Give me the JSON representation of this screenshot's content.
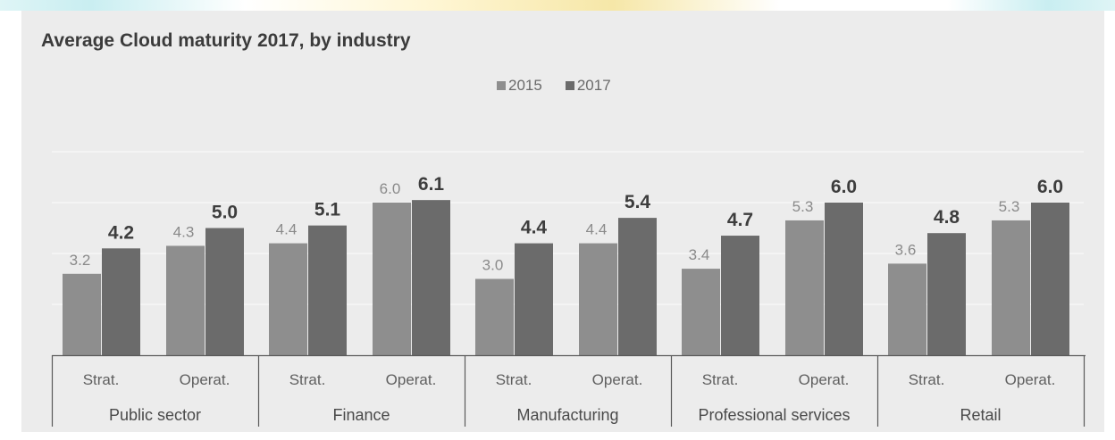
{
  "chart_data": {
    "type": "bar",
    "title": "Average Cloud maturity 2017, by industry",
    "legend_position": "top-center",
    "grid": true,
    "ylim": [
      0,
      8
    ],
    "series": [
      {
        "name": "2015",
        "color": "#8e8e8e",
        "values": [
          3.2,
          4.3,
          4.4,
          6.0,
          3.0,
          4.4,
          3.4,
          5.3,
          3.6,
          5.3
        ]
      },
      {
        "name": "2017",
        "color": "#6b6b6b",
        "values": [
          4.2,
          5.0,
          5.1,
          6.1,
          4.4,
          5.4,
          4.7,
          6.0,
          4.8,
          6.0
        ]
      }
    ],
    "value_labels_2015": [
      "3.2",
      "4.3",
      "4.4",
      "6.0",
      "3.0",
      "4.4",
      "3.4",
      "5.3",
      "3.6",
      "5.3"
    ],
    "value_labels_2017": [
      "4.2",
      "5.0",
      "5.1",
      "6.1",
      "4.4",
      "5.4",
      "4.7",
      "6.0",
      "4.8",
      "6.0"
    ],
    "groups": [
      {
        "label": "Public sector",
        "categories": [
          "Strat.",
          "Operat."
        ]
      },
      {
        "label": "Finance",
        "categories": [
          "Strat.",
          "Operat."
        ]
      },
      {
        "label": "Manufacturing",
        "categories": [
          "Strat.",
          "Operat."
        ]
      },
      {
        "label": "Professional services",
        "categories": [
          "Strat.",
          "Operat."
        ]
      },
      {
        "label": "Retail",
        "categories": [
          "Strat.",
          "Operat."
        ]
      }
    ]
  }
}
